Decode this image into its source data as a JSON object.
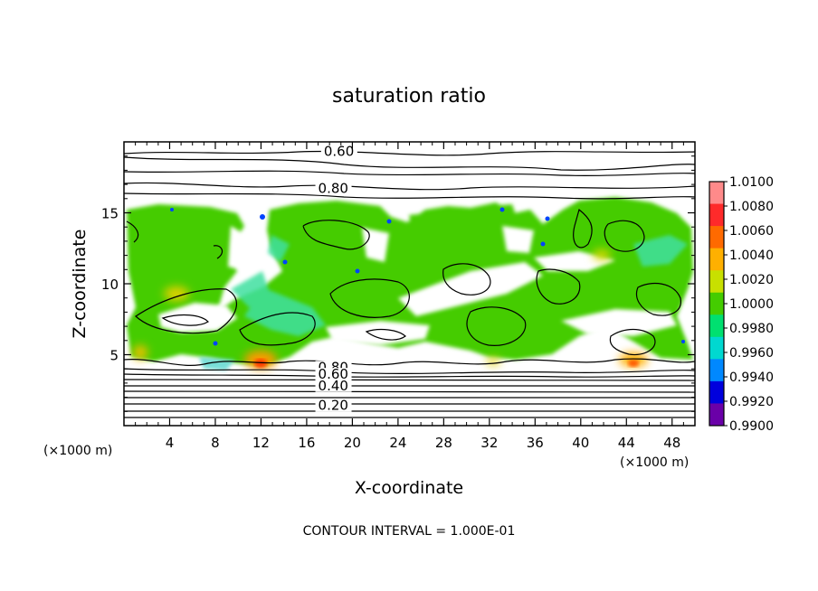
{
  "chart_data": {
    "type": "heatmap",
    "title": "saturation ratio",
    "xlabel": "X-coordinate",
    "ylabel": "Z-coordinate",
    "x_unit": "(×1000 m)",
    "z_unit": "(×1000 m)",
    "xlim": [
      0,
      50
    ],
    "ylim": [
      0,
      20
    ],
    "x_ticks": [
      4,
      8,
      12,
      16,
      20,
      24,
      28,
      32,
      36,
      40,
      44,
      48
    ],
    "y_ticks": [
      5,
      10,
      15
    ],
    "footer": "CONTOUR INTERVAL = 1.000E-01",
    "colorbar": {
      "labels": [
        "1.0100",
        "1.0080",
        "1.0060",
        "1.0040",
        "1.0020",
        "1.0000",
        "0.9980",
        "0.9960",
        "0.9940",
        "0.9920",
        "0.9900"
      ],
      "colors": [
        "#ff8a8a",
        "#ff2a2a",
        "#ff6a00",
        "#ffb000",
        "#c8e000",
        "#44cc00",
        "#00e070",
        "#00d8d0",
        "#0088ff",
        "#0000dd",
        "#6a00a8"
      ]
    },
    "contour_labels": [
      {
        "text": "0.60",
        "x": 17.5,
        "y": 19.0
      },
      {
        "text": "0.80",
        "x": 17.0,
        "y": 16.4
      },
      {
        "text": "0.80",
        "x": 17.0,
        "y": 3.8
      },
      {
        "text": "0.60",
        "x": 17.0,
        "y": 3.3
      },
      {
        "text": "0.40",
        "x": 17.0,
        "y": 2.5
      },
      {
        "text": "0.20",
        "x": 17.0,
        "y": 1.1
      }
    ]
  }
}
